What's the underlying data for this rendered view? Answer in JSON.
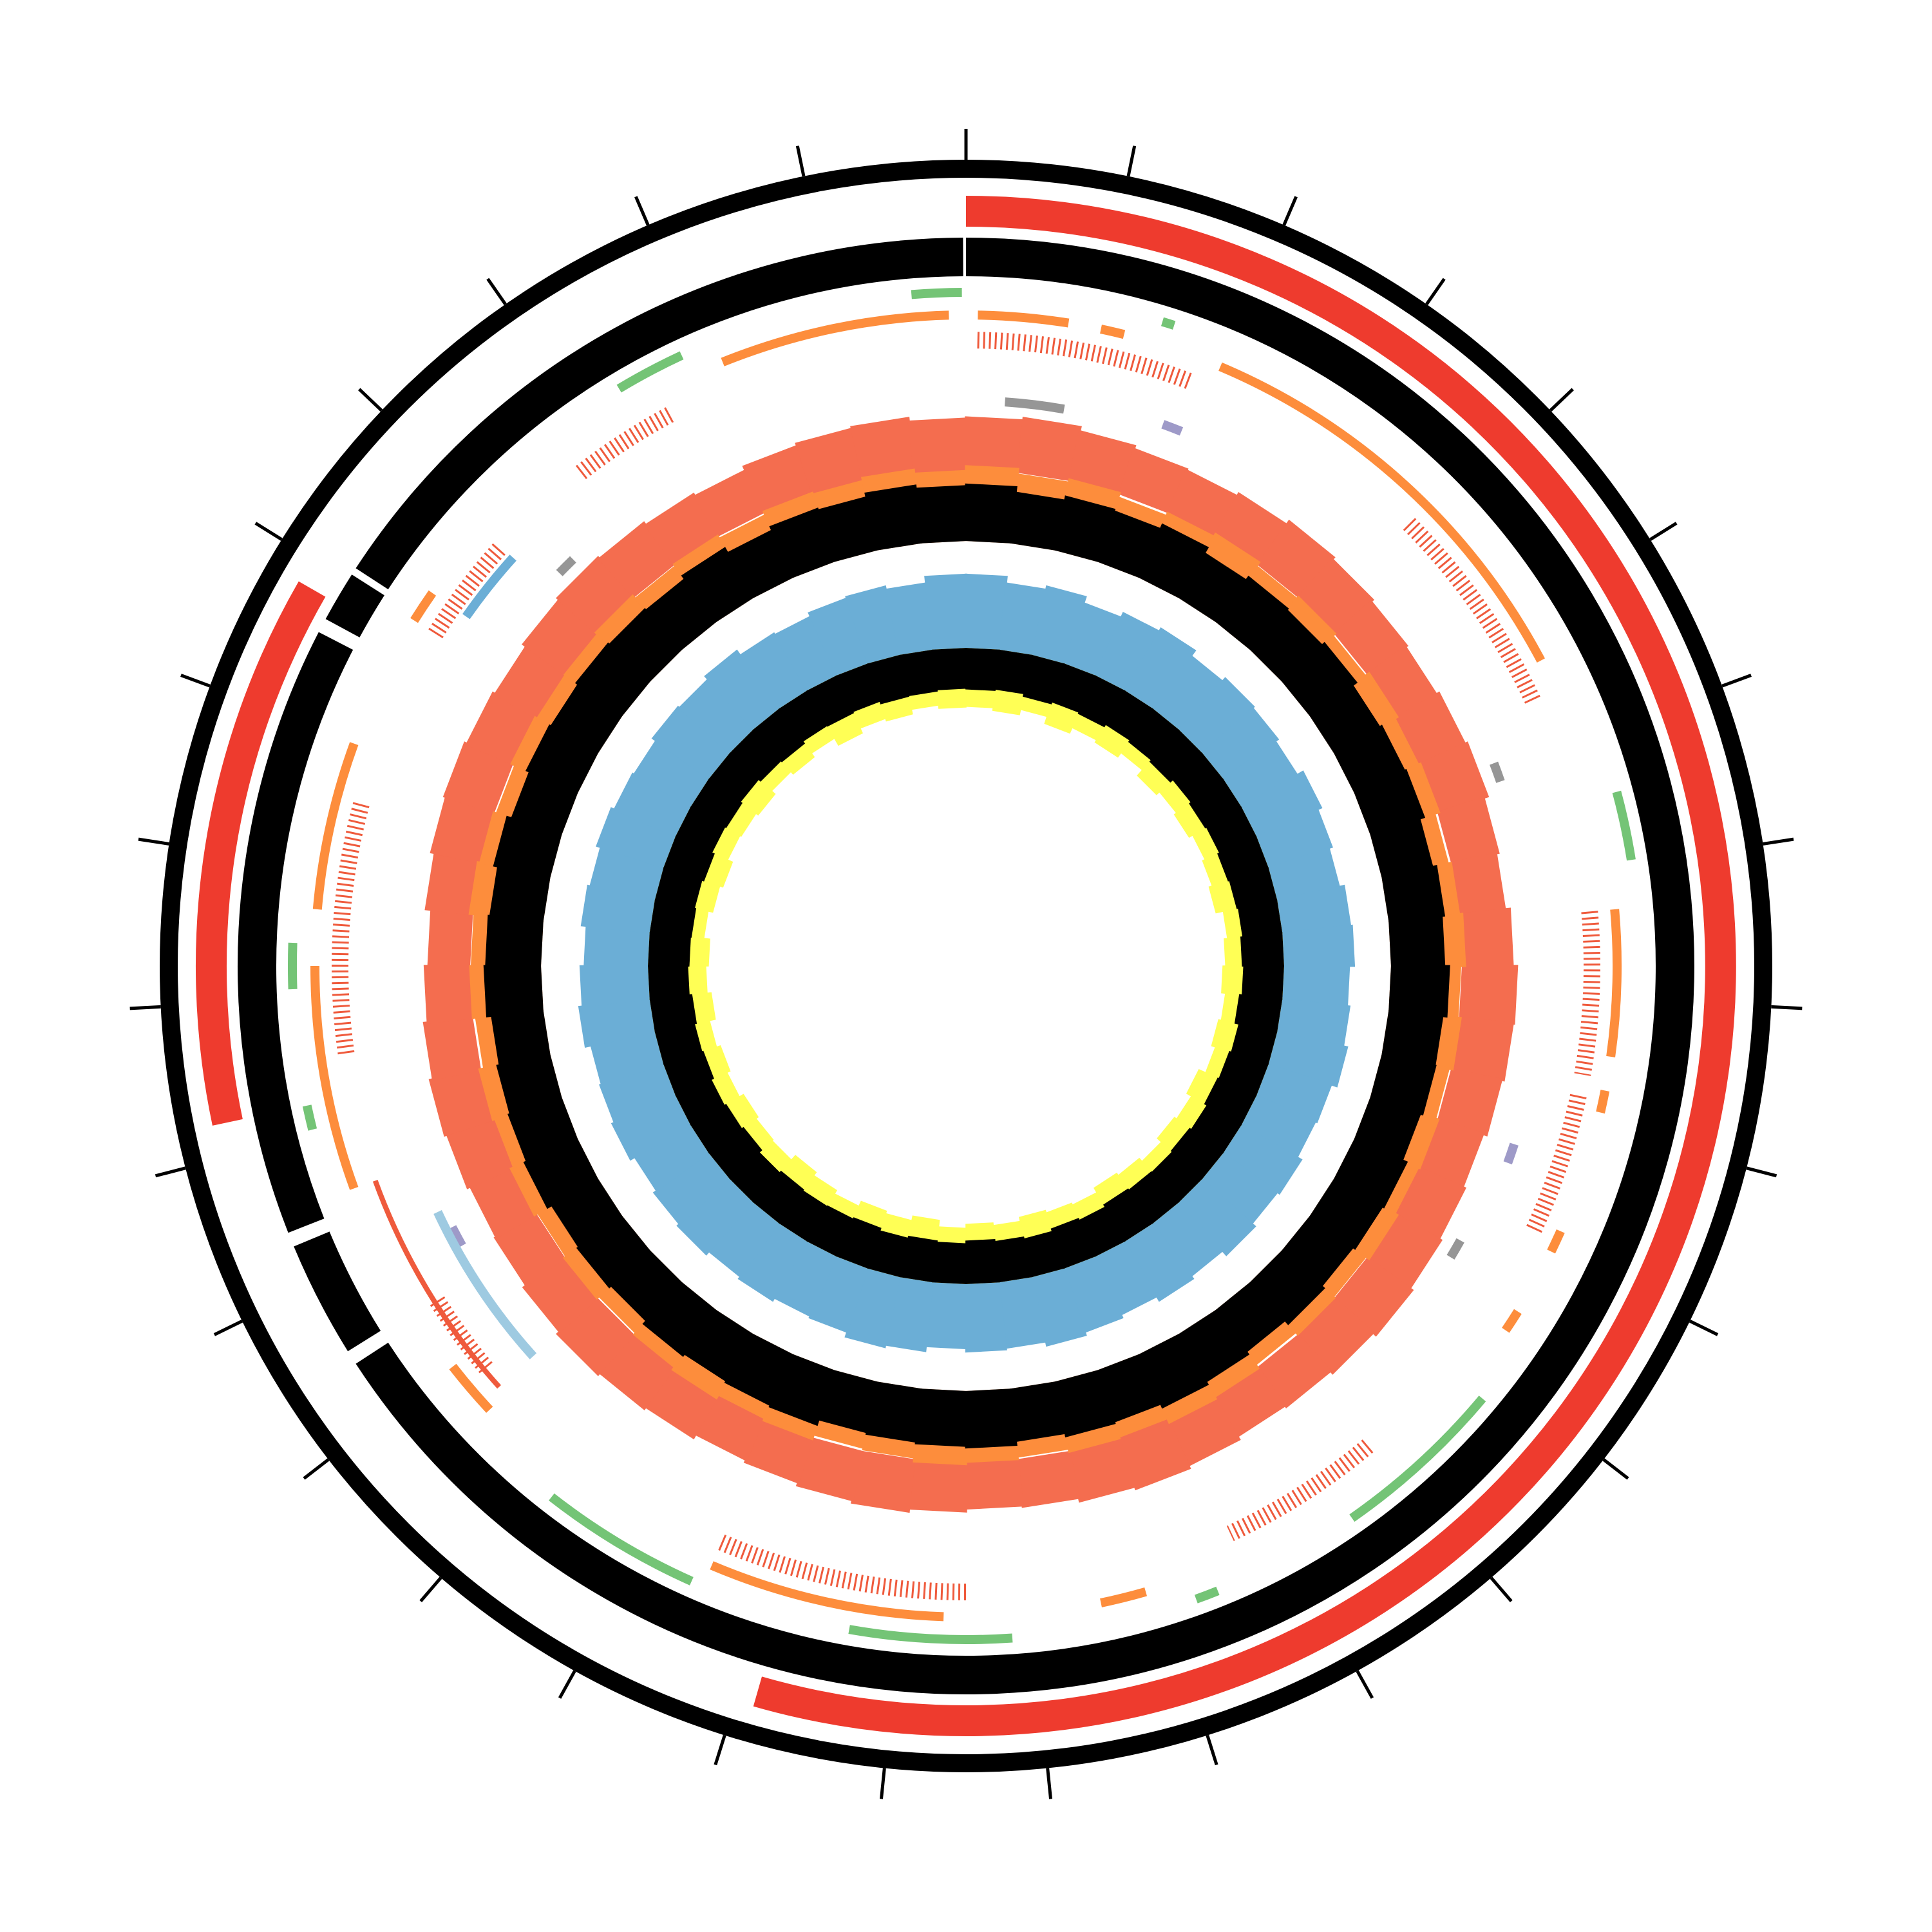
{
  "chart_data": {
    "type": "circos",
    "xlim": [
      0,
      31
    ],
    "xticks": [
      0,
      1,
      2,
      3,
      4,
      5,
      6,
      7,
      8,
      9,
      10,
      11,
      12,
      13,
      14,
      15,
      16,
      17,
      18,
      19,
      20,
      21,
      22,
      23,
      24,
      25,
      26,
      27,
      28,
      29,
      30
    ],
    "ylim": [
      0,
      100
    ],
    "tracks": [
      {
        "type": "arc",
        "color": "#ee3b2e",
        "arcs": [
          [
            0,
            16.88
          ],
          [
            22.22,
            25.83
          ]
        ]
      },
      {
        "type": "arc",
        "color": "#000000",
        "arcs": [
          [
            0,
            20.4
          ],
          [
            20.5,
            21.3
          ],
          [
            21.4,
            25.6
          ],
          [
            25.7,
            26.05
          ],
          [
            26.1,
            30.98
          ]
        ]
      },
      {
        "type": "arc",
        "color": "#74c476",
        "arcs": [
          [
            30.6,
            30.97
          ],
          [
            28.33,
            28.85
          ],
          [
            6.46,
            6.97
          ],
          [
            1.46,
            1.55
          ],
          [
            23.08,
            23.42
          ],
          [
            22.04,
            22.22
          ],
          [
            11.19,
            12.49
          ],
          [
            13.61,
            13.78
          ],
          [
            15.16,
            16.36
          ],
          [
            17.57,
            18.77
          ]
        ]
      },
      {
        "type": "arc",
        "color": "#fd8d3c",
        "arcs": [
          [
            29.11,
            30.87
          ],
          [
            0.09,
            0.78
          ],
          [
            1.03,
            1.21
          ],
          [
            1.98,
            5.34
          ],
          [
            7.32,
            8.44
          ],
          [
            8.7,
            8.87
          ],
          [
            9.82,
            9.99
          ],
          [
            10.51,
            10.68
          ],
          [
            14.12,
            14.47
          ],
          [
            15.67,
            17.48
          ],
          [
            19.55,
            19.98
          ],
          [
            21.53,
            23.25
          ],
          [
            23.68,
            24.97
          ],
          [
            26.01,
            26.26
          ]
        ]
      },
      {
        "type": "tick-arc",
        "color": "#ef5a3c",
        "arcs": [
          [
            0.09,
            1.81
          ],
          [
            3.88,
            5.6
          ],
          [
            7.32,
            8.61
          ],
          [
            8.78,
            9.9
          ],
          [
            12.06,
            13.35
          ],
          [
            15.5,
            17.48
          ],
          [
            19.81,
            20.49
          ],
          [
            22.56,
            24.54
          ],
          [
            26.01,
            26.87
          ],
          [
            27.73,
            28.59
          ]
        ]
      },
      {
        "type": "arc",
        "color": "#ef5a3c",
        "arcs": [
          [
            19.63,
            21.53
          ]
        ]
      },
      {
        "type": "arc",
        "color": "#969696",
        "arcs": [
          [
            0.34,
            0.86
          ],
          [
            27.04,
            27.21
          ],
          [
            10.25,
            10.42
          ],
          [
            5.94,
            6.11
          ]
        ]
      },
      {
        "type": "arc",
        "color": "#9e9ac8",
        "arcs": [
          [
            1.72,
            1.89
          ],
          [
            20.75,
            20.93
          ],
          [
            9.3,
            9.47
          ]
        ]
      },
      {
        "type": "arc",
        "color": "#6baed6",
        "arcs": [
          [
            26.26,
            26.87
          ]
        ]
      },
      {
        "type": "arc",
        "color": "#9ecae1",
        "arcs": [
          [
            19.63,
            21.1
          ]
        ]
      },
      {
        "type": "histogram",
        "series": [
          {
            "color": "#f46d4f",
            "values": [
              88,
              92,
              85,
              80,
              78,
              83,
              90,
              86,
              82,
              79,
              84,
              88,
              81,
              77,
              85,
              92,
              90,
              86,
              80,
              84,
              88,
              93,
              87,
              82,
              79,
              85,
              90,
              86,
              80,
              78,
              83,
              88,
              84,
              79,
              75,
              82,
              86,
              90,
              85,
              80,
              78,
              83,
              87,
              82,
              76,
              70,
              79,
              85,
              88,
              84,
              80,
              86,
              90,
              87,
              82,
              78,
              85,
              89,
              92,
              86
            ]
          }
        ]
      },
      {
        "type": "histogram",
        "series": [
          {
            "color": "#fd8d3c",
            "values": [
              95,
              88,
              92,
              86,
              90,
              94,
              88,
              91,
              87,
              93,
              89,
              92,
              86,
              90,
              94,
              88,
              92,
              87,
              91,
              89,
              93,
              88,
              90,
              86,
              92,
              95,
              89,
              91,
              87,
              90,
              93,
              88,
              86,
              92,
              89,
              94,
              90,
              87,
              91,
              88,
              93,
              89,
              92,
              86,
              90,
              88,
              94,
              91,
              87,
              92,
              89,
              90,
              93,
              88,
              91,
              87,
              92,
              90,
              94,
              89
            ]
          },
          {
            "color": "#000000",
            "values": [
              72,
              65,
              70,
              68,
              74,
              66,
              71,
              69,
              73,
              67,
              70,
              72,
              66,
              71,
              68,
              74,
              69,
              70,
              67,
              73,
              71,
              68,
              72,
              66,
              70,
              74,
              69,
              71,
              67,
              72,
              70,
              68,
              66,
              73,
              71,
              69,
              72,
              67,
              70,
              68,
              74,
              71,
              69,
              66,
              72,
              70,
              68,
              73,
              67,
              71,
              69,
              72,
              70,
              68,
              73,
              66,
              71,
              69,
              74,
              70
            ]
          }
        ]
      },
      {
        "type": "histogram",
        "series": [
          {
            "color": "#6baed6",
            "values": [
              90,
              82,
              86,
              78,
              84,
              88,
              80,
              85,
              83,
              79,
              87,
              82,
              78,
              84,
              86,
              80,
              83,
              88,
              81,
              79,
              85,
              82,
              87,
              80,
              84,
              78,
              82,
              86,
              81,
              83,
              79,
              85,
              88,
              82,
              80,
              84,
              81,
              86,
              83,
              79,
              85,
              82,
              80,
              87,
              83,
              78,
              84,
              81,
              86,
              82,
              80,
              85,
              83,
              88,
              81,
              79,
              84,
              86,
              82,
              90
            ]
          }
        ]
      },
      {
        "type": "histogram-inward",
        "series": [
          {
            "color": "#ffff55",
            "values": [
              88,
              92,
              84,
              95,
              86,
              90,
              82,
              93,
              87,
              91,
              85,
              89,
              94,
              83,
              88,
              92,
              86,
              90,
              84,
              95,
              87,
              91,
              83,
              89,
              93,
              85,
              88,
              92,
              86,
              90,
              84,
              94,
              87,
              91,
              83,
              89,
              95,
              86,
              88,
              92,
              85,
              90,
              84,
              93,
              87,
              91,
              82,
              89,
              94,
              86,
              88,
              92,
              85,
              90,
              83,
              95,
              87,
              91,
              84,
              89
            ]
          },
          {
            "color": "#000000",
            "values": [
              62,
              60,
              64,
              61,
              63,
              59,
              62,
              65,
              60,
              63,
              61,
              64,
              62,
              60,
              63,
              61,
              65,
              59,
              62,
              64,
              60,
              63,
              61,
              62,
              64,
              60,
              63,
              59,
              62,
              65,
              61,
              63,
              60,
              64,
              62,
              61,
              63,
              60,
              65,
              62,
              59,
              63,
              61,
              64,
              60,
              62,
              63,
              61,
              64,
              60,
              62,
              59,
              63,
              65,
              61,
              62,
              60,
              64,
              63,
              61
            ]
          }
        ]
      }
    ]
  }
}
